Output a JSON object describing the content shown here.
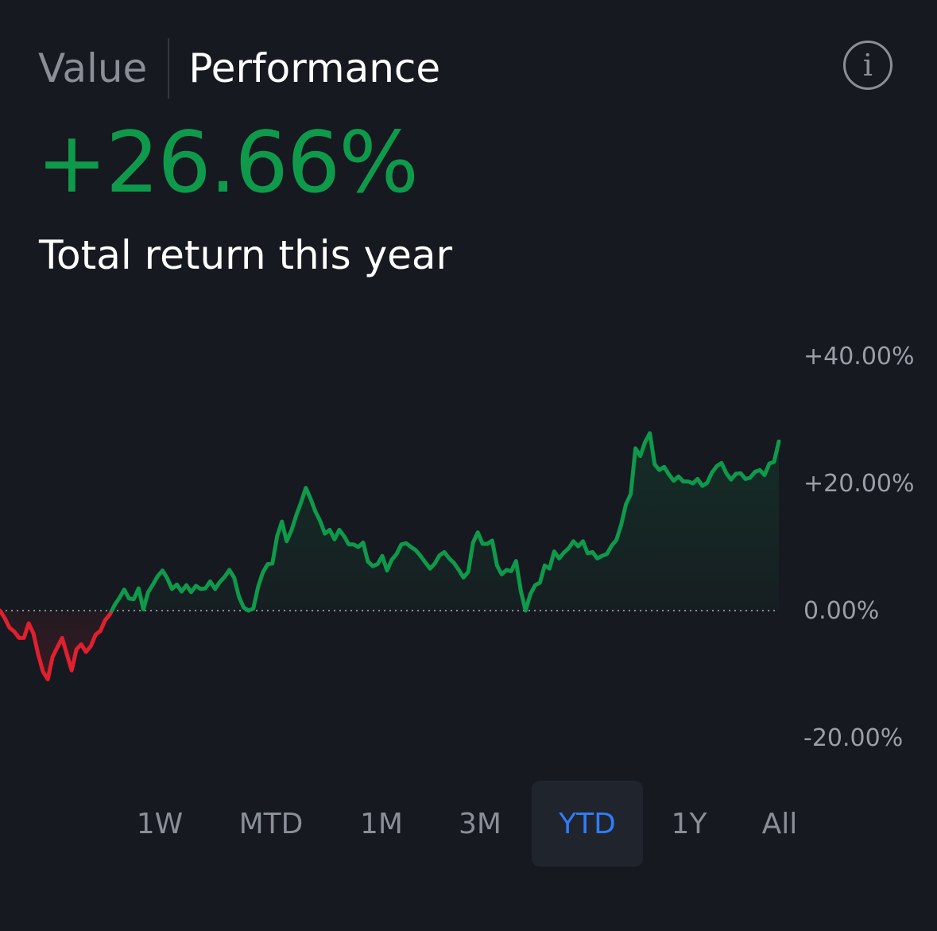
{
  "header": {
    "tabs": [
      {
        "label": "Value",
        "active": false
      },
      {
        "label": "Performance",
        "active": true
      }
    ],
    "info_icon": "info-circle-icon",
    "info_glyph": "i"
  },
  "summary": {
    "value": "+26.66%",
    "caption": "Total return this year",
    "color": "#0e9a4a"
  },
  "colors": {
    "positive": "#0e9a4a",
    "negative": "#e0202e",
    "active_range": "#2f7cf6"
  },
  "chart_data": {
    "type": "area",
    "title": "",
    "xlabel": "",
    "ylabel": "",
    "ylim": [
      -20,
      40
    ],
    "y_ticks": [
      {
        "value": 40,
        "label": "+40.00%"
      },
      {
        "value": 20,
        "label": "+20.00%"
      },
      {
        "value": 0,
        "label": "0.00%"
      },
      {
        "value": -20,
        "label": "-20.00%"
      }
    ],
    "baseline": 0,
    "baseline_style": "dotted",
    "grid": false,
    "series": [
      {
        "values": [
          0,
          -1.2,
          -2.7,
          -3.3,
          -4.3,
          -4.3,
          -2.0,
          -3.6,
          -6.9,
          -9.6,
          -10.8,
          -7.3,
          -5.8,
          -4.3,
          -6.9,
          -9.4,
          -6.1,
          -5.3,
          -6.5,
          -5.6,
          -3.8,
          -3.2,
          -1.5,
          -0.6,
          0.9,
          2.0,
          3.3,
          1.9,
          1.8,
          3.5,
          0.2,
          2.9,
          4.1,
          5.4,
          6.3,
          5.1,
          3.4,
          4.1,
          3.0,
          4.0,
          2.9,
          3.9,
          3.4,
          3.5,
          4.6,
          3.4,
          4.5,
          5.3,
          6.4,
          5.2,
          2.2,
          0.5,
          0,
          0.3,
          3.7,
          6.0,
          7.3,
          7.4,
          11.7,
          14.0,
          10.9,
          12.6,
          15.0,
          17.0,
          19.3,
          17.6,
          15.6,
          14.1,
          12.1,
          12.7,
          11.2,
          12.7,
          11.7,
          10.4,
          10.4,
          10.0,
          10.7,
          7.7,
          7.0,
          7.3,
          8.6,
          6.3,
          8.0,
          8.9,
          10.4,
          10.6,
          10.0,
          9.5,
          8.6,
          7.6,
          6.6,
          7.4,
          8.7,
          9.2,
          8.2,
          7.5,
          6.4,
          5.2,
          6.1,
          10.7,
          12.3,
          10.5,
          10.5,
          11.0,
          7.1,
          5.7,
          6.4,
          6.2,
          7.8,
          3.1,
          0,
          2.6,
          4.0,
          4.4,
          7.1,
          6.6,
          9.3,
          8.2,
          9.1,
          9.8,
          10.9,
          10.1,
          10.9,
          9.0,
          9.2,
          8.2,
          8.6,
          8.9,
          10.2,
          11.1,
          13.5,
          16.7,
          18.3,
          25.5,
          24.3,
          26.5,
          27.9,
          23.0,
          22.1,
          22.6,
          21.4,
          20.4,
          21.1,
          20.3,
          20.3,
          20.0,
          20.7,
          19.6,
          20.1,
          21.7,
          22.7,
          23.2,
          21.6,
          20.6,
          21.5,
          21.6,
          20.7,
          20.9,
          21.8,
          22.1,
          21.3,
          23.1,
          23.4,
          26.6
        ]
      }
    ]
  },
  "ranges": {
    "items": [
      {
        "label": "1W",
        "active": false
      },
      {
        "label": "MTD",
        "active": false
      },
      {
        "label": "1M",
        "active": false
      },
      {
        "label": "3M",
        "active": false
      },
      {
        "label": "YTD",
        "active": true
      },
      {
        "label": "1Y",
        "active": false
      },
      {
        "label": "All",
        "active": false
      }
    ]
  }
}
